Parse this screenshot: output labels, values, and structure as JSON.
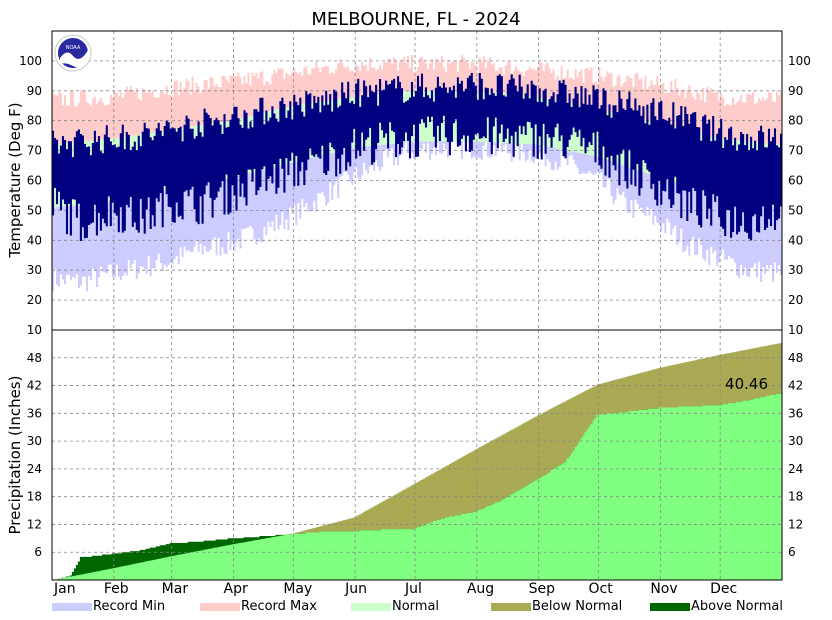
{
  "chart_data": [
    {
      "type": "area",
      "panel": "temperature",
      "title": "MELBOURNE, FL - 2024",
      "ylabel": "Temperature (Deg F)",
      "ylim": [
        10,
        110
      ],
      "yticks": [
        10,
        20,
        30,
        40,
        50,
        60,
        70,
        80,
        90,
        100
      ],
      "x_months": [
        "Jan",
        "Feb",
        "Mar",
        "Apr",
        "May",
        "Jun",
        "Jul",
        "Aug",
        "Sep",
        "Oct",
        "Nov",
        "Dec"
      ],
      "grid": true,
      "colors": {
        "record_min": "#ccccff",
        "record_max": "#ffcccc",
        "normal": "#ccffcc",
        "observed": "#000080"
      },
      "series": [
        {
          "name": "Record Min",
          "x_day": [
            1,
            15,
            32,
            46,
            60,
            74,
            91,
            105,
            121,
            135,
            152,
            166,
            182,
            196,
            213,
            227,
            244,
            258,
            274,
            288,
            305,
            319,
            335,
            349,
            366
          ],
          "values": [
            27,
            26,
            29,
            31,
            33,
            37,
            39,
            43,
            48,
            54,
            61,
            66,
            70,
            71,
            71,
            70,
            69,
            66,
            60,
            52,
            46,
            39,
            34,
            30,
            29
          ]
        },
        {
          "name": "Normal Low",
          "x_day": [
            1,
            32,
            60,
            91,
            121,
            152,
            182,
            213,
            244,
            274,
            305,
            335,
            366
          ],
          "values": [
            51,
            53,
            57,
            61,
            66,
            71,
            73,
            73,
            72,
            68,
            61,
            55,
            51
          ]
        },
        {
          "name": "Normal High",
          "x_day": [
            1,
            32,
            60,
            91,
            121,
            152,
            182,
            213,
            244,
            274,
            305,
            335,
            366
          ],
          "values": [
            72,
            74,
            77,
            80,
            85,
            88,
            90,
            90,
            88,
            84,
            79,
            74,
            72
          ]
        },
        {
          "name": "Record Max",
          "x_day": [
            1,
            32,
            60,
            91,
            121,
            152,
            182,
            213,
            244,
            274,
            305,
            335,
            366
          ],
          "values": [
            87,
            88,
            91,
            93,
            96,
            99,
            99,
            99,
            97,
            95,
            92,
            88,
            87
          ]
        },
        {
          "name": "Observed Low",
          "x_day": [
            1,
            15,
            32,
            46,
            60,
            74,
            91,
            105,
            121,
            135,
            152,
            166,
            182,
            196,
            213,
            227,
            244,
            258,
            274,
            288,
            305,
            319,
            335,
            349,
            366
          ],
          "values": [
            52,
            46,
            50,
            47,
            53,
            52,
            56,
            59,
            63,
            66,
            71,
            73,
            74,
            75,
            75,
            74,
            74,
            73,
            70,
            64,
            58,
            52,
            48,
            46,
            50
          ]
        },
        {
          "name": "Observed High",
          "x_day": [
            1,
            15,
            32,
            46,
            60,
            74,
            91,
            105,
            121,
            135,
            152,
            166,
            182,
            196,
            213,
            227,
            244,
            258,
            274,
            288,
            305,
            319,
            335,
            349,
            366
          ],
          "values": [
            72,
            73,
            74,
            75,
            77,
            79,
            81,
            83,
            85,
            86,
            89,
            90,
            91,
            91,
            92,
            91,
            90,
            89,
            87,
            85,
            83,
            80,
            76,
            74,
            74
          ]
        }
      ]
    },
    {
      "type": "area",
      "panel": "precipitation",
      "ylabel": "Precipitation (Inches)",
      "ylim": [
        0,
        54
      ],
      "yticks": [
        6,
        12,
        18,
        24,
        30,
        36,
        42,
        48
      ],
      "x_months": [
        "Jan",
        "Feb",
        "Mar",
        "Apr",
        "May",
        "Jun",
        "Jul",
        "Aug",
        "Sep",
        "Oct",
        "Nov",
        "Dec"
      ],
      "grid": true,
      "annotation": "40.46",
      "colors": {
        "observed": "#80ff80",
        "below_normal": "#aaaa55",
        "above_normal": "#006600"
      },
      "series": [
        {
          "name": "Normal Cumulative",
          "x_day": [
            1,
            32,
            60,
            91,
            121,
            152,
            182,
            213,
            244,
            274,
            305,
            335,
            366
          ],
          "values": [
            0,
            2.6,
            5.1,
            7.7,
            10.0,
            13.5,
            20.7,
            28.2,
            35.5,
            42.2,
            45.8,
            48.6,
            51.2
          ]
        },
        {
          "name": "Observed Cumulative",
          "x_day": [
            1,
            10,
            15,
            32,
            46,
            60,
            74,
            91,
            105,
            121,
            135,
            152,
            166,
            182,
            196,
            213,
            227,
            244,
            258,
            274,
            288,
            305,
            319,
            335,
            349,
            366
          ],
          "values": [
            0,
            1,
            5,
            5.8,
            6.6,
            8,
            8.4,
            9.1,
            9.5,
            10.0,
            10.5,
            10.7,
            11,
            11.2,
            13.4,
            14.9,
            17.5,
            21.8,
            25.7,
            35.8,
            36.4,
            37.3,
            37.6,
            37.9,
            38.9,
            40.46
          ]
        }
      ]
    }
  ],
  "legend": [
    {
      "label": "Record Min",
      "color": "#ccccff"
    },
    {
      "label": "Record Max",
      "color": "#ffcccc"
    },
    {
      "label": "Normal",
      "color": "#ccffcc"
    },
    {
      "label": "Below Normal",
      "color": "#aaaa55"
    },
    {
      "label": "Above Normal",
      "color": "#006600"
    }
  ],
  "logo": {
    "text": "NOAA",
    "icon": "noaa-logo-icon"
  }
}
